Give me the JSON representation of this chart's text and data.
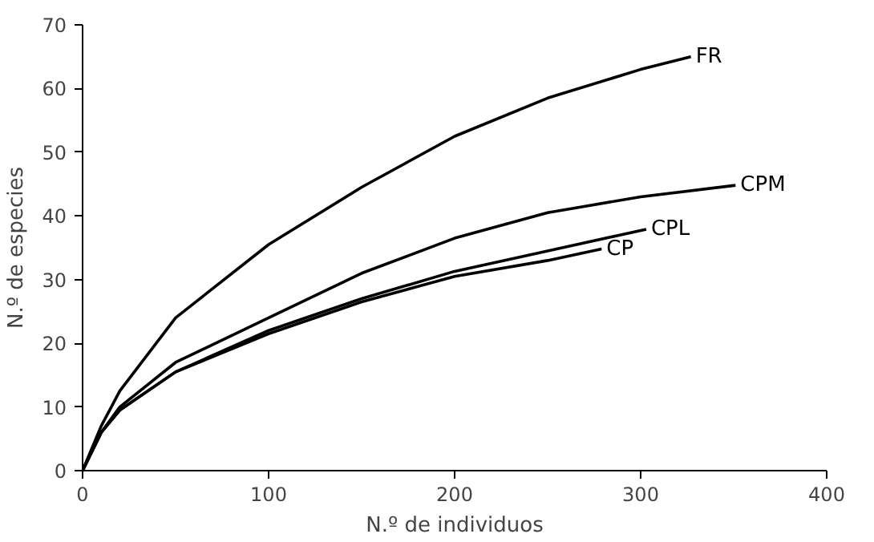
{
  "chart_data": {
    "type": "line",
    "xlabel": "N.º de individuos",
    "ylabel": "N.º de especies",
    "xlim": [
      0,
      400
    ],
    "ylim": [
      0,
      70
    ],
    "xticks": [
      0,
      100,
      200,
      300,
      400
    ],
    "yticks": [
      0,
      10,
      20,
      30,
      40,
      50,
      60,
      70
    ],
    "grid": false,
    "marker": "none",
    "line_style": "solid",
    "series": [
      {
        "name": "FR",
        "color": "#000000",
        "x": [
          0,
          10,
          20,
          50,
          100,
          150,
          200,
          250,
          300,
          327
        ],
        "values": [
          0,
          7,
          12.5,
          24,
          35.5,
          44.5,
          52.5,
          58.5,
          63,
          65
        ]
      },
      {
        "name": "CPM",
        "color": "#000000",
        "x": [
          0,
          10,
          20,
          50,
          100,
          150,
          200,
          250,
          300,
          351
        ],
        "values": [
          0,
          6,
          10,
          17,
          24,
          31,
          36.5,
          40.5,
          43,
          44.8
        ]
      },
      {
        "name": "CPL",
        "color": "#000000",
        "x": [
          0,
          10,
          20,
          50,
          100,
          150,
          200,
          250,
          303
        ],
        "values": [
          0,
          6,
          9.5,
          15.5,
          22,
          27,
          31.3,
          34.5,
          37.9
        ]
      },
      {
        "name": "CP",
        "color": "#000000",
        "x": [
          0,
          10,
          20,
          50,
          100,
          150,
          200,
          250,
          279
        ],
        "values": [
          0,
          6,
          9.5,
          15.5,
          21.5,
          26.5,
          30.5,
          33,
          34.8
        ]
      }
    ]
  }
}
